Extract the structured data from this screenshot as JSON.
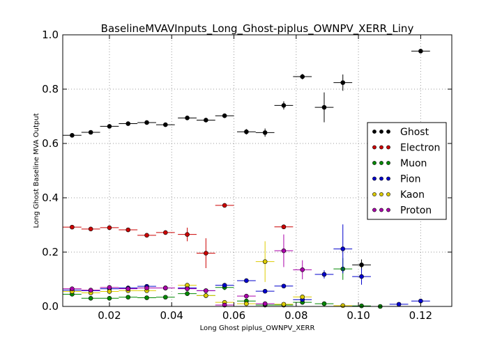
{
  "chart_data": {
    "type": "scatter",
    "title": "BaselineMVAVInputs_Long_Ghost-piplus_OWNPV_XERR_Liny",
    "xlabel": "Long Ghost piplus_OWNPV_XERR",
    "ylabel": "Long Ghost Baseline MVA Output",
    "xlim": [
      0.005,
      0.13
    ],
    "ylim": [
      0.0,
      1.0
    ],
    "xticks": [
      0.02,
      0.04,
      0.06,
      0.08,
      0.1,
      0.12
    ],
    "xtick_labels": [
      "0.02",
      "0.04",
      "0.06",
      "0.08",
      "0.10",
      "0.12"
    ],
    "yticks": [
      0.0,
      0.2,
      0.4,
      0.6,
      0.8,
      1.0
    ],
    "ytick_labels": [
      "0.0",
      "0.2",
      "0.4",
      "0.6",
      "0.8",
      "1.0"
    ],
    "grid": true,
    "legend_position": "right",
    "x_bin_half_width": 0.003,
    "series": [
      {
        "name": "Ghost",
        "color": "#000000",
        "x": [
          0.008,
          0.014,
          0.02,
          0.026,
          0.032,
          0.038,
          0.045,
          0.051,
          0.057,
          0.064,
          0.07,
          0.076,
          0.082,
          0.089,
          0.095,
          0.101,
          0.12
        ],
        "y": [
          0.63,
          0.641,
          0.663,
          0.673,
          0.677,
          0.669,
          0.694,
          0.686,
          0.702,
          0.643,
          0.64,
          0.74,
          0.846,
          0.733,
          0.824,
          0.153,
          0.94
        ],
        "yerr": [
          0.005,
          0.005,
          0.005,
          0.005,
          0.005,
          0.006,
          0.005,
          0.006,
          0.007,
          0.01,
          0.015,
          0.015,
          0.01,
          0.055,
          0.03,
          0.02,
          0.005
        ]
      },
      {
        "name": "Electron",
        "color": "#cc0000",
        "x": [
          0.008,
          0.014,
          0.02,
          0.026,
          0.032,
          0.038,
          0.045,
          0.051,
          0.057,
          0.076
        ],
        "y": [
          0.292,
          0.285,
          0.29,
          0.282,
          0.262,
          0.272,
          0.265,
          0.196,
          0.372,
          0.293
        ],
        "yerr": [
          0.004,
          0.004,
          0.004,
          0.005,
          0.006,
          0.008,
          0.025,
          0.055,
          0.004,
          0.004
        ]
      },
      {
        "name": "Muon",
        "color": "#008800",
        "x": [
          0.008,
          0.014,
          0.02,
          0.026,
          0.032,
          0.038,
          0.045,
          0.051,
          0.057,
          0.064,
          0.07,
          0.076,
          0.082,
          0.089,
          0.095,
          0.101,
          0.107
        ],
        "y": [
          0.045,
          0.03,
          0.03,
          0.034,
          0.032,
          0.034,
          0.047,
          0.04,
          0.07,
          0.02,
          0.005,
          0.005,
          0.015,
          0.01,
          0.138,
          0.002,
          0.0
        ],
        "yerr": [
          0.004,
          0.003,
          0.003,
          0.003,
          0.003,
          0.004,
          0.005,
          0.006,
          0.01,
          0.005,
          0.003,
          0.003,
          0.005,
          0.004,
          0.04,
          0.002,
          0.001
        ]
      },
      {
        "name": "Pion",
        "color": "#0000cc",
        "x": [
          0.008,
          0.014,
          0.02,
          0.026,
          0.032,
          0.038,
          0.045,
          0.051,
          0.057,
          0.064,
          0.07,
          0.076,
          0.082,
          0.089,
          0.095,
          0.101,
          0.113,
          0.12
        ],
        "y": [
          0.06,
          0.058,
          0.065,
          0.068,
          0.074,
          0.068,
          0.068,
          0.058,
          0.078,
          0.095,
          0.056,
          0.075,
          0.025,
          0.118,
          0.212,
          0.11,
          0.008,
          0.02
        ],
        "yerr": [
          0.003,
          0.003,
          0.003,
          0.003,
          0.004,
          0.004,
          0.005,
          0.005,
          0.006,
          0.004,
          0.005,
          0.006,
          0.005,
          0.015,
          0.09,
          0.03,
          0.003,
          0.004
        ]
      },
      {
        "name": "Kaon",
        "color": "#ddcc00",
        "x": [
          0.008,
          0.014,
          0.02,
          0.026,
          0.032,
          0.038,
          0.045,
          0.051,
          0.057,
          0.064,
          0.07,
          0.076,
          0.082,
          0.095
        ],
        "y": [
          0.055,
          0.05,
          0.055,
          0.058,
          0.058,
          0.068,
          0.078,
          0.04,
          0.015,
          0.01,
          0.165,
          0.008,
          0.035,
          0.003
        ],
        "yerr": [
          0.003,
          0.003,
          0.003,
          0.004,
          0.004,
          0.005,
          0.006,
          0.006,
          0.004,
          0.004,
          0.075,
          0.003,
          0.005,
          0.002
        ]
      },
      {
        "name": "Proton",
        "color": "#aa00aa",
        "x": [
          0.008,
          0.014,
          0.02,
          0.026,
          0.032,
          0.038,
          0.045,
          0.051,
          0.057,
          0.064,
          0.07,
          0.076,
          0.082
        ],
        "y": [
          0.065,
          0.06,
          0.07,
          0.065,
          0.068,
          0.068,
          0.065,
          0.058,
          0.005,
          0.038,
          0.01,
          0.205,
          0.135
        ],
        "yerr": [
          0.003,
          0.003,
          0.003,
          0.003,
          0.004,
          0.004,
          0.005,
          0.005,
          0.003,
          0.004,
          0.003,
          0.06,
          0.035
        ]
      }
    ]
  }
}
